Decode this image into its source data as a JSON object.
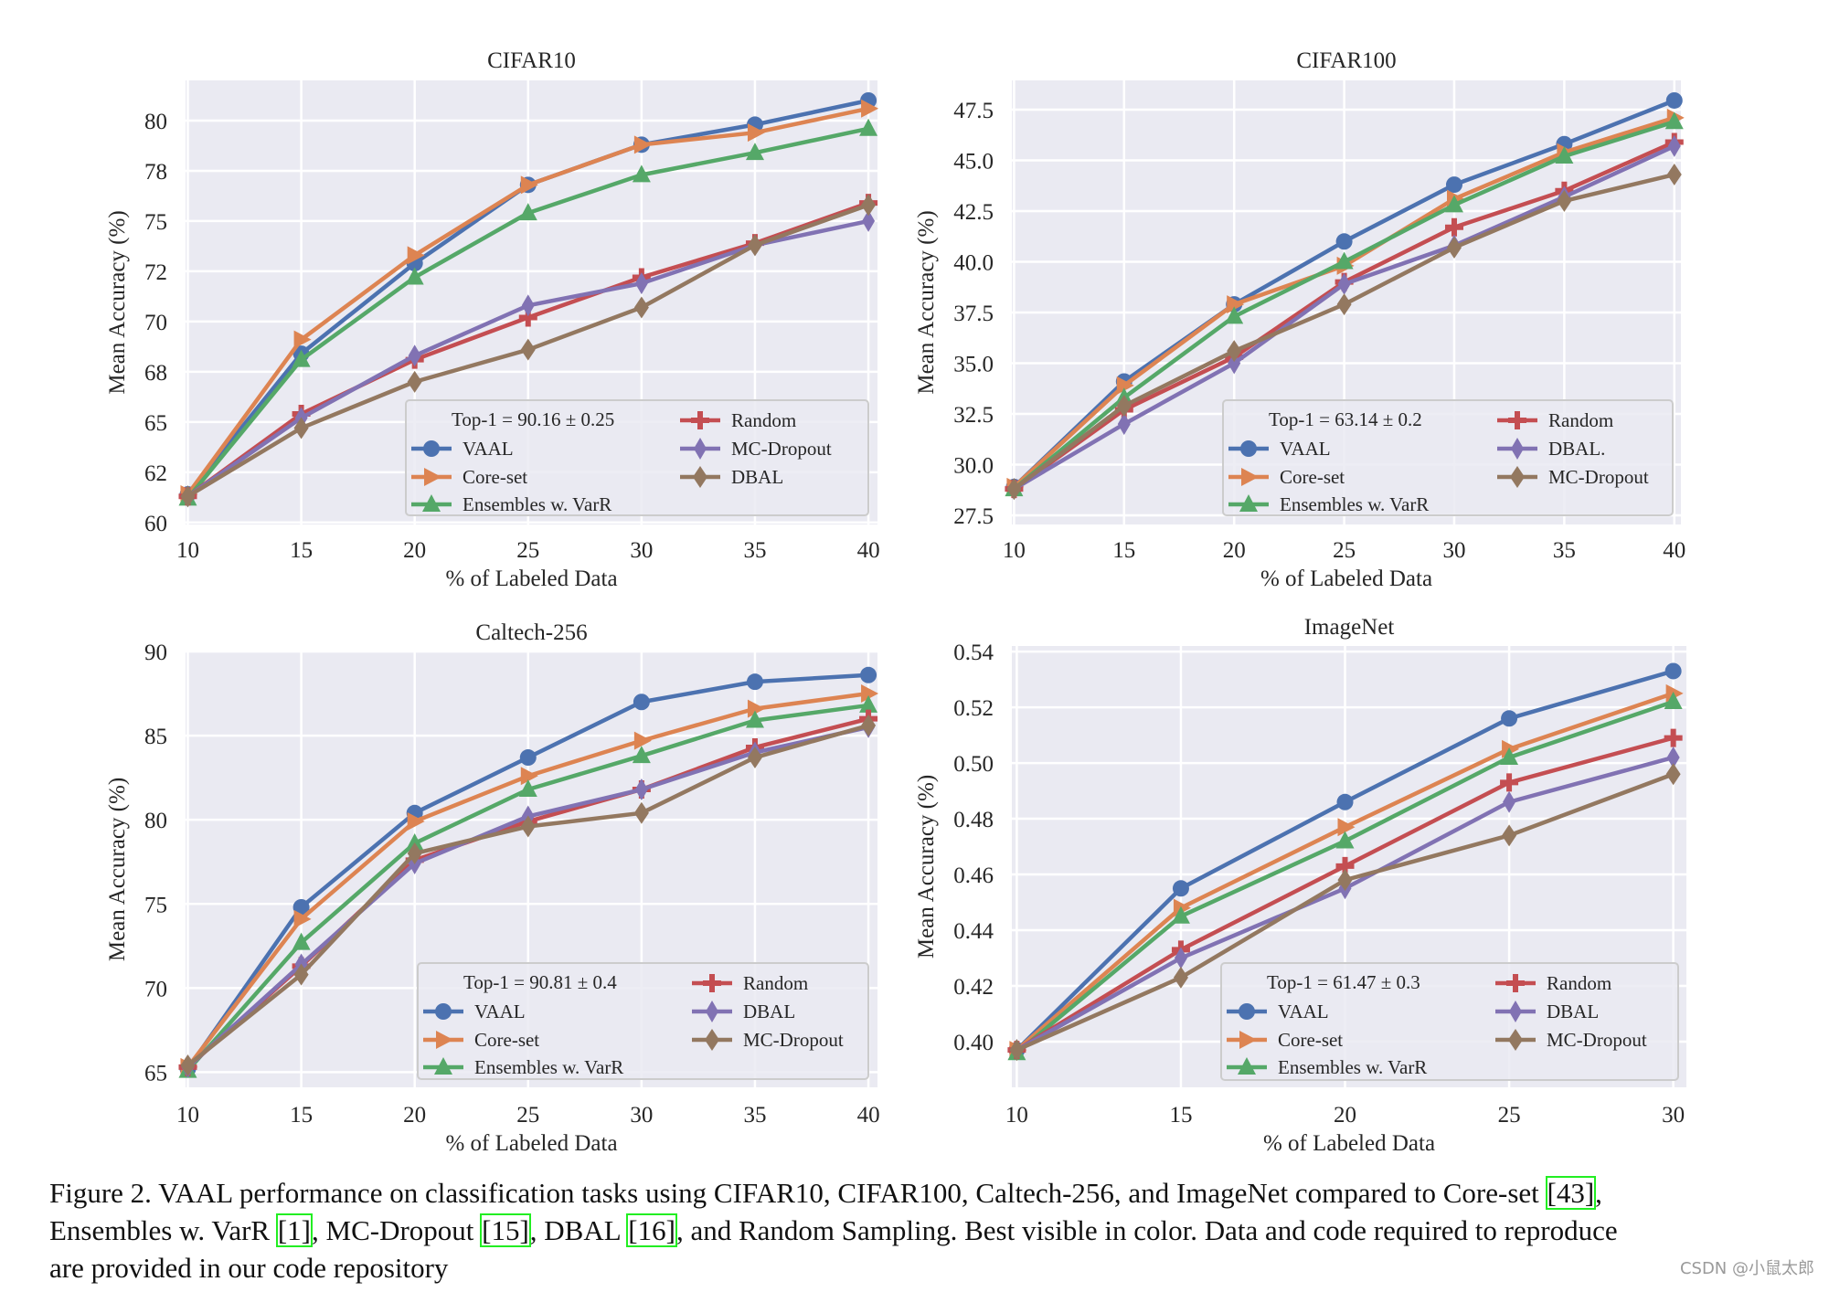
{
  "colors": {
    "background": "#eaeaf2",
    "grid": "#ffffff",
    "VAAL": "#4c72b0",
    "Core-set": "#dd8452",
    "Ensembles": "#55a868",
    "Random": "#c44e52",
    "purple": "#8172b3",
    "brown": "#937860"
  },
  "chart_data": [
    {
      "type": "line",
      "title": "CIFAR10",
      "xlabel": "% of Labeled Data",
      "ylabel": "Mean Accuracy (%)",
      "x": [
        10,
        15,
        20,
        25,
        30,
        35,
        40
      ],
      "xlim": [
        9.9,
        40.4
      ],
      "ylim": [
        59.9,
        82
      ],
      "xticks": [
        10,
        15,
        20,
        25,
        30,
        35,
        40
      ],
      "yticks": [
        60,
        62.5,
        65,
        67.5,
        70,
        72.5,
        75,
        77.5,
        80
      ],
      "ytick_labels": [
        "60",
        "62",
        "65",
        "68",
        "70",
        "72",
        "75",
        "78",
        "80"
      ],
      "grid": true,
      "legend_position": "lower-right",
      "legend_note": "Top-1 = 90.16 ± 0.25",
      "series": [
        {
          "name": "VAAL",
          "color": "#4c72b0",
          "marker": "circle",
          "values": [
            61.4,
            68.4,
            72.9,
            76.8,
            78.8,
            79.8,
            81.0
          ]
        },
        {
          "name": "Core-set",
          "color": "#dd8452",
          "marker": "triangle-right",
          "values": [
            61.4,
            69.1,
            73.3,
            76.8,
            78.8,
            79.4,
            80.6
          ]
        },
        {
          "name": "Ensembles w. VarR",
          "color": "#55a868",
          "marker": "triangle-up",
          "values": [
            61.2,
            68.1,
            72.2,
            75.4,
            77.3,
            78.4,
            79.6
          ]
        },
        {
          "name": "Random",
          "color": "#c44e52",
          "marker": "plus",
          "values": [
            61.3,
            65.4,
            68.1,
            70.2,
            72.2,
            73.9,
            75.9
          ]
        },
        {
          "name": "MC-Dropout",
          "color": "#8172b3",
          "marker": "thin-diamond",
          "values": [
            61.3,
            65.2,
            68.3,
            70.8,
            71.9,
            73.8,
            75.0
          ]
        },
        {
          "name": "DBAL",
          "color": "#937860",
          "marker": "diamond",
          "values": [
            61.3,
            64.7,
            67.0,
            68.6,
            70.7,
            73.8,
            75.8
          ]
        }
      ]
    },
    {
      "type": "line",
      "title": "CIFAR100",
      "xlabel": "% of Labeled Data",
      "ylabel": "Mean Accuracy (%)",
      "x": [
        10,
        15,
        20,
        25,
        30,
        35,
        40
      ],
      "xlim": [
        9.9,
        40.3
      ],
      "ylim": [
        27.05,
        48.94
      ],
      "xticks": [
        10,
        15,
        20,
        25,
        30,
        35,
        40
      ],
      "yticks": [
        27.5,
        30,
        32.5,
        35,
        37.5,
        40,
        42.5,
        45,
        47.5
      ],
      "ytick_labels": [
        "27.5",
        "30.0",
        "32.5",
        "35.0",
        "37.5",
        "40.0",
        "42.5",
        "45.0",
        "47.5"
      ],
      "grid": true,
      "legend_position": "lower-right",
      "legend_note": "Top-1 = 63.14 ± 0.2",
      "series": [
        {
          "name": "VAAL",
          "color": "#4c72b0",
          "marker": "circle",
          "values": [
            28.9,
            34.1,
            37.9,
            41.0,
            43.8,
            45.8,
            47.95
          ]
        },
        {
          "name": "Core-set",
          "color": "#dd8452",
          "marker": "triangle-right",
          "values": [
            28.9,
            33.9,
            37.9,
            39.8,
            43.1,
            45.4,
            47.1
          ]
        },
        {
          "name": "Ensembles w. VarR",
          "color": "#55a868",
          "marker": "triangle-up",
          "values": [
            28.8,
            33.3,
            37.3,
            40.0,
            42.8,
            45.2,
            46.9
          ]
        },
        {
          "name": "Random",
          "color": "#c44e52",
          "marker": "plus",
          "values": [
            28.8,
            32.7,
            35.3,
            39.0,
            41.7,
            43.5,
            45.9
          ]
        },
        {
          "name": "DBAL.",
          "color": "#8172b3",
          "marker": "thin-diamond",
          "values": [
            28.8,
            32.0,
            35.0,
            38.9,
            40.8,
            43.2,
            45.7
          ]
        },
        {
          "name": "MC-Dropout",
          "color": "#937860",
          "marker": "diamond",
          "values": [
            28.8,
            32.9,
            35.6,
            37.9,
            40.7,
            43.0,
            44.3
          ]
        }
      ]
    },
    {
      "type": "line",
      "title": "Caltech-256",
      "xlabel": "% of Labeled Data",
      "ylabel": "Mean Accuracy (%)",
      "x": [
        10,
        15,
        20,
        25,
        30,
        35,
        40
      ],
      "xlim": [
        9.9,
        40.4
      ],
      "ylim": [
        64.1,
        90
      ],
      "xticks": [
        10,
        15,
        20,
        25,
        30,
        35,
        40
      ],
      "yticks": [
        65,
        70,
        75,
        80,
        85,
        90
      ],
      "ytick_labels": [
        "65",
        "70",
        "75",
        "80",
        "85",
        "90"
      ],
      "grid": true,
      "legend_position": "lower-right",
      "legend_note": "Top-1 = 90.81 ± 0.4",
      "series": [
        {
          "name": "VAAL",
          "color": "#4c72b0",
          "marker": "circle",
          "values": [
            65.2,
            74.8,
            80.4,
            83.7,
            87.0,
            88.2,
            88.6
          ]
        },
        {
          "name": "Core-set",
          "color": "#dd8452",
          "marker": "triangle-right",
          "values": [
            65.3,
            74.1,
            79.9,
            82.6,
            84.7,
            86.6,
            87.5
          ]
        },
        {
          "name": "Ensembles w. VarR",
          "color": "#55a868",
          "marker": "triangle-up",
          "values": [
            65.1,
            72.7,
            78.6,
            81.8,
            83.8,
            85.9,
            86.8
          ]
        },
        {
          "name": "Random",
          "color": "#c44e52",
          "marker": "plus",
          "values": [
            65.3,
            71.3,
            77.6,
            79.9,
            81.8,
            84.3,
            86.0
          ]
        },
        {
          "name": "DBAL",
          "color": "#8172b3",
          "marker": "thin-diamond",
          "values": [
            65.3,
            71.4,
            77.4,
            80.2,
            81.8,
            84.0,
            85.5
          ]
        },
        {
          "name": "MC-Dropout",
          "color": "#937860",
          "marker": "diamond",
          "values": [
            65.4,
            70.8,
            78.0,
            79.6,
            80.4,
            83.7,
            85.6
          ]
        }
      ]
    },
    {
      "type": "line",
      "title": "ImageNet",
      "xlabel": "% of Labeled Data",
      "ylabel": "Mean Accuracy (%)",
      "x": [
        10,
        15,
        20,
        25,
        30
      ],
      "xlim": [
        9.85,
        30.4
      ],
      "ylim": [
        0.3836,
        0.542
      ],
      "xticks": [
        10,
        15,
        20,
        25,
        30
      ],
      "yticks": [
        0.4,
        0.42,
        0.44,
        0.46,
        0.48,
        0.5,
        0.52,
        0.54
      ],
      "ytick_labels": [
        "0.40",
        "0.42",
        "0.44",
        "0.46",
        "0.48",
        "0.50",
        "0.52",
        "0.54"
      ],
      "grid": true,
      "legend_position": "lower-right",
      "legend_note": "Top-1  = 61.47 ± 0.3",
      "series": [
        {
          "name": "VAAL",
          "color": "#4c72b0",
          "marker": "circle",
          "values": [
            0.397,
            0.455,
            0.486,
            0.516,
            0.533
          ]
        },
        {
          "name": "Core-set",
          "color": "#dd8452",
          "marker": "triangle-right",
          "values": [
            0.397,
            0.448,
            0.477,
            0.505,
            0.525
          ]
        },
        {
          "name": "Ensembles w. VarR",
          "color": "#55a868",
          "marker": "triangle-up",
          "values": [
            0.396,
            0.445,
            0.472,
            0.502,
            0.522
          ]
        },
        {
          "name": "Random",
          "color": "#c44e52",
          "marker": "plus",
          "values": [
            0.397,
            0.433,
            0.463,
            0.493,
            0.509
          ]
        },
        {
          "name": "DBAL",
          "color": "#8172b3",
          "marker": "thin-diamond",
          "values": [
            0.397,
            0.43,
            0.455,
            0.486,
            0.502
          ]
        },
        {
          "name": "MC-Dropout",
          "color": "#937860",
          "marker": "diamond",
          "values": [
            0.397,
            0.423,
            0.458,
            0.474,
            0.496
          ]
        }
      ]
    }
  ],
  "caption": {
    "lines": [
      [
        {
          "t": "Figure 2. VAAL performance on classification tasks using CIFAR10, CIFAR100, Caltech-256, and ImageNet compared to Core-set "
        },
        {
          "cite": "[43]"
        },
        {
          "t": ","
        }
      ],
      [
        {
          "t": "Ensembles w. VarR "
        },
        {
          "cite": "[1]"
        },
        {
          "t": ", MC-Dropout "
        },
        {
          "cite": "[15]"
        },
        {
          "t": ", DBAL "
        },
        {
          "cite": "[16]"
        },
        {
          "t": ", and Random Sampling. Best visible in color. Data and code required to reproduce"
        }
      ],
      [
        {
          "t": "are provided in our code repository"
        }
      ]
    ]
  },
  "watermark": "CSDN @小鼠太郎"
}
